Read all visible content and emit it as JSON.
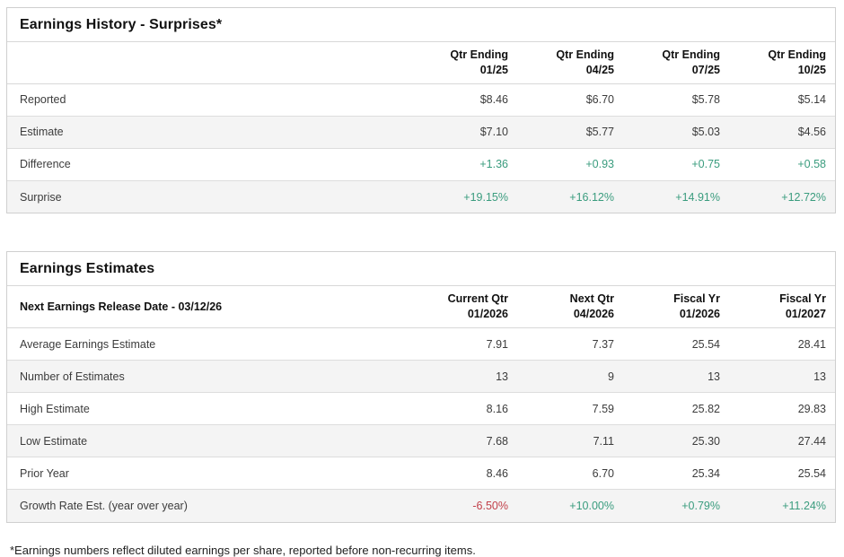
{
  "colors": {
    "positive": "#3a9c7e",
    "negative": "#c2404a",
    "neutral": "#3c3c3c"
  },
  "earnings_history": {
    "title": "Earnings History - Surprises*",
    "header_label": "",
    "columns": [
      {
        "line1": "Qtr Ending",
        "line2": "01/25"
      },
      {
        "line1": "Qtr Ending",
        "line2": "04/25"
      },
      {
        "line1": "Qtr Ending",
        "line2": "07/25"
      },
      {
        "line1": "Qtr Ending",
        "line2": "10/25"
      }
    ],
    "rows": [
      {
        "label": "Reported",
        "values": [
          "$8.46",
          "$6.70",
          "$5.78",
          "$5.14"
        ],
        "tones": [
          "neutral",
          "neutral",
          "neutral",
          "neutral"
        ]
      },
      {
        "label": "Estimate",
        "values": [
          "$7.10",
          "$5.77",
          "$5.03",
          "$4.56"
        ],
        "tones": [
          "neutral",
          "neutral",
          "neutral",
          "neutral"
        ]
      },
      {
        "label": "Difference",
        "values": [
          "+1.36",
          "+0.93",
          "+0.75",
          "+0.58"
        ],
        "tones": [
          "positive",
          "positive",
          "positive",
          "positive"
        ]
      },
      {
        "label": "Surprise",
        "values": [
          "+19.15%",
          "+16.12%",
          "+14.91%",
          "+12.72%"
        ],
        "tones": [
          "positive",
          "positive",
          "positive",
          "positive"
        ]
      }
    ]
  },
  "earnings_estimates": {
    "title": "Earnings Estimates",
    "header_label": "Next Earnings Release Date - 03/12/26",
    "columns": [
      {
        "line1": "Current Qtr",
        "line2": "01/2026"
      },
      {
        "line1": "Next Qtr",
        "line2": "04/2026"
      },
      {
        "line1": "Fiscal Yr",
        "line2": "01/2026"
      },
      {
        "line1": "Fiscal Yr",
        "line2": "01/2027"
      }
    ],
    "rows": [
      {
        "label": "Average Earnings Estimate",
        "values": [
          "7.91",
          "7.37",
          "25.54",
          "28.41"
        ],
        "tones": [
          "neutral",
          "neutral",
          "neutral",
          "neutral"
        ]
      },
      {
        "label": "Number of Estimates",
        "values": [
          "13",
          "9",
          "13",
          "13"
        ],
        "tones": [
          "neutral",
          "neutral",
          "neutral",
          "neutral"
        ]
      },
      {
        "label": "High Estimate",
        "values": [
          "8.16",
          "7.59",
          "25.82",
          "29.83"
        ],
        "tones": [
          "neutral",
          "neutral",
          "neutral",
          "neutral"
        ]
      },
      {
        "label": "Low Estimate",
        "values": [
          "7.68",
          "7.11",
          "25.30",
          "27.44"
        ],
        "tones": [
          "neutral",
          "neutral",
          "neutral",
          "neutral"
        ]
      },
      {
        "label": "Prior Year",
        "values": [
          "8.46",
          "6.70",
          "25.34",
          "25.54"
        ],
        "tones": [
          "neutral",
          "neutral",
          "neutral",
          "neutral"
        ]
      },
      {
        "label": "Growth Rate Est. (year over year)",
        "values": [
          "-6.50%",
          "+10.00%",
          "+0.79%",
          "+11.24%"
        ],
        "tones": [
          "negative",
          "positive",
          "positive",
          "positive"
        ]
      }
    ]
  },
  "footnote": "*Earnings numbers reflect diluted earnings per share, reported before non-recurring items."
}
